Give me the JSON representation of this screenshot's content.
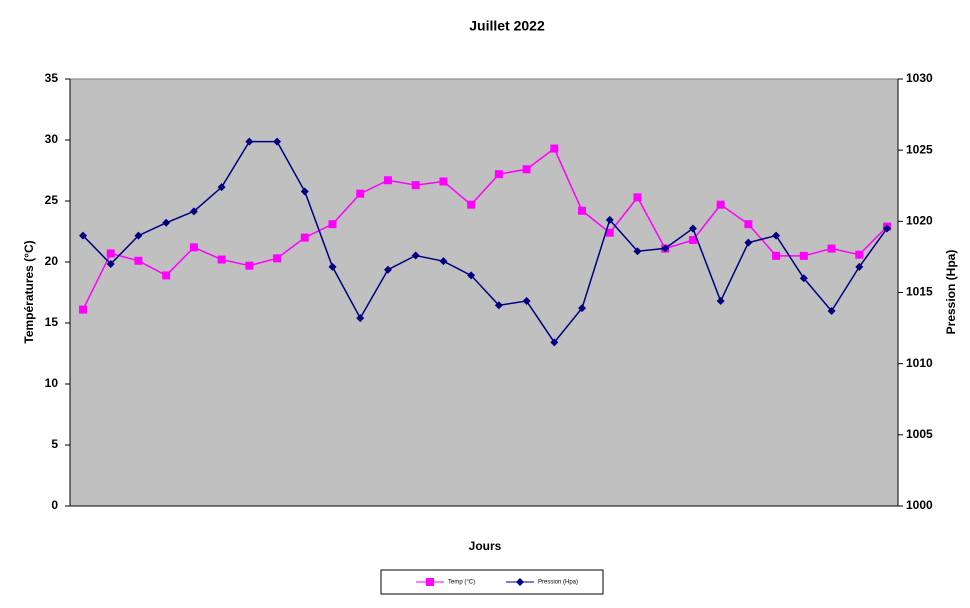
{
  "chart_data": {
    "type": "line",
    "title": "Juillet 2022",
    "x_label": "Jours",
    "y_label": "Températures (°C)",
    "y2_label": "Pression (Hpa)",
    "categories": [
      null,
      null,
      null,
      null,
      null,
      null,
      null,
      null,
      null,
      null,
      null,
      null,
      null,
      null,
      null,
      null,
      null,
      null,
      null,
      null,
      null,
      null,
      null,
      null,
      null,
      null,
      null,
      null,
      null,
      null
    ],
    "series": [
      {
        "name": "Temp (°C)",
        "color": "#ff00ff",
        "marker": "square",
        "values": [
          16.1,
          20.7,
          20.1,
          18.9,
          21.2,
          20.2,
          19.7,
          20.3,
          22.0,
          23.1,
          25.6,
          26.7,
          26.3,
          26.6,
          24.7,
          27.2,
          27.6,
          29.3,
          24.2,
          22.4,
          25.3,
          21.1,
          21.8,
          24.7,
          23.1,
          20.5,
          20.5,
          21.1,
          20.6,
          22.9
        ]
      },
      {
        "name": "Pression (Hpa)",
        "color": "#000080",
        "marker": "diamond",
        "axis": "y2",
        "values": [
          1019.0,
          1017.0,
          1019.0,
          1019.9,
          1020.7,
          1022.4,
          1025.6,
          1025.6,
          1022.1,
          1016.8,
          1013.2,
          1016.6,
          1017.6,
          1017.2,
          1016.2,
          1014.1,
          1014.4,
          1011.5,
          1013.9,
          1020.1,
          1017.9,
          1018.1,
          1019.5,
          1014.4,
          1018.5,
          1019.0,
          1016.0,
          1013.7,
          1016.8,
          1019.5
        ]
      }
    ],
    "ylim": [
      0,
      35
    ],
    "yticks": [
      0,
      5,
      10,
      15,
      20,
      25,
      30,
      35
    ],
    "y2lim": [
      1000,
      1030
    ],
    "y2ticks": [
      1000,
      1005,
      1010,
      1015,
      1020,
      1025,
      1030
    ],
    "plot_background": "#c0c0c0"
  }
}
